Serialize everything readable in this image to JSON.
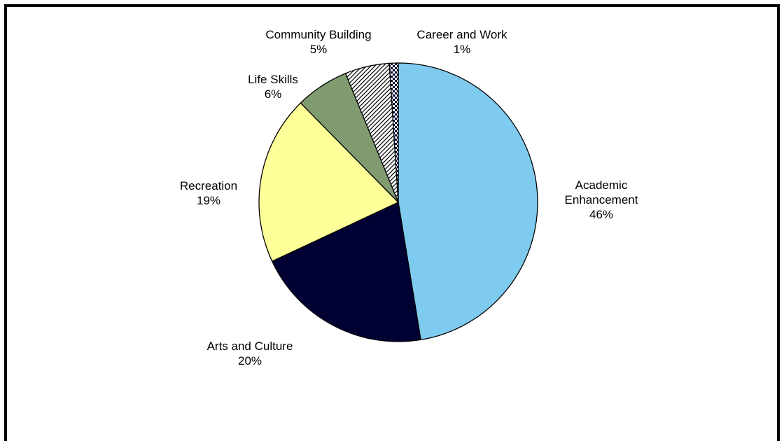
{
  "chart_data": {
    "type": "pie",
    "title": "",
    "legend": "none",
    "slices": [
      {
        "name": "Academic Enhancement",
        "value": 46,
        "label_lines": [
          "Academic",
          "Enhancement",
          "46%"
        ],
        "color": "#7fcbef",
        "pattern": "solid"
      },
      {
        "name": "Arts and Culture",
        "value": 20,
        "label_lines": [
          "Arts and Culture",
          "20%"
        ],
        "color": "#000033",
        "pattern": "solid"
      },
      {
        "name": "Recreation",
        "value": 19,
        "label_lines": [
          "Recreation",
          "19%"
        ],
        "color": "#ffff99",
        "pattern": "solid"
      },
      {
        "name": "Life Skills",
        "value": 6,
        "label_lines": [
          "Life Skills",
          "6%"
        ],
        "color": "#7f9b6f",
        "pattern": "solid"
      },
      {
        "name": "Community Building",
        "value": 5,
        "label_lines": [
          "Community Building",
          "5%"
        ],
        "color": "#ffffff",
        "pattern": "diagonal-hatch"
      },
      {
        "name": "Career and Work",
        "value": 1,
        "label_lines": [
          "Career and Work",
          "1%"
        ],
        "color": "#000033",
        "pattern": "checker"
      }
    ]
  }
}
